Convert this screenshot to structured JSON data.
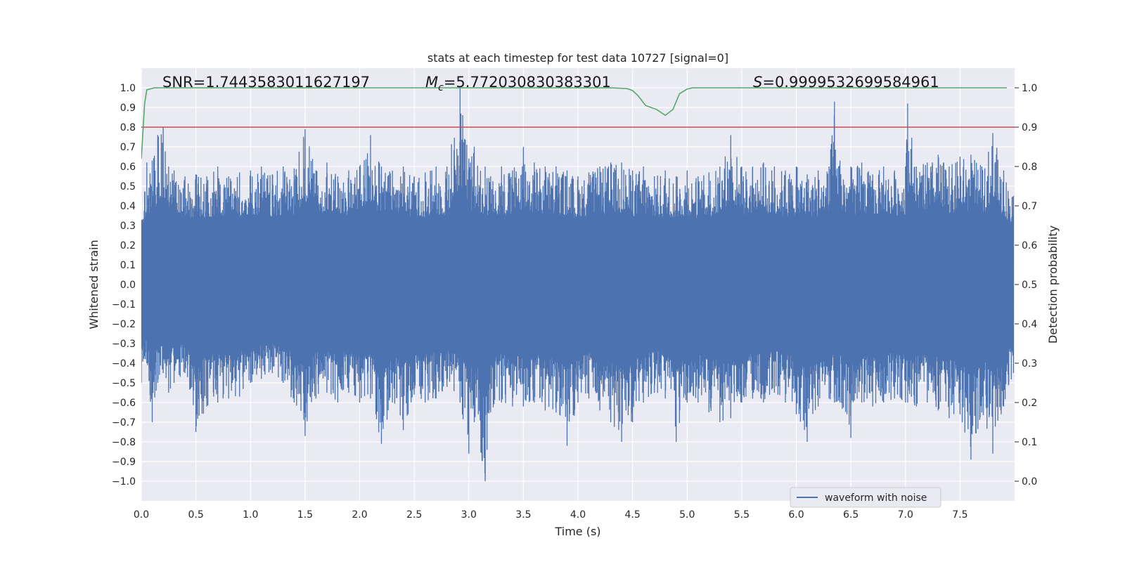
{
  "chart_data": {
    "type": "line",
    "title": "stats at each timestep for test data 10727 [signal=0]",
    "xlabel": "Time (s)",
    "ylabel_left": "Whitened strain",
    "ylabel_right": "Detection probability",
    "xlim": [
      0,
      8.0
    ],
    "ylim_left": [
      -1.1,
      1.1
    ],
    "ylim_right": [
      -0.05,
      1.05
    ],
    "x_ticks": [
      "0.0",
      "0.5",
      "1.0",
      "1.5",
      "2.0",
      "2.5",
      "3.0",
      "3.5",
      "4.0",
      "4.5",
      "5.0",
      "5.5",
      "6.0",
      "6.5",
      "7.0",
      "7.5"
    ],
    "y_left_ticks": [
      "1.0",
      "0.9",
      "0.8",
      "0.7",
      "0.6",
      "0.5",
      "0.4",
      "0.3",
      "0.2",
      "0.1",
      "0.0",
      "−0.1",
      "−0.2",
      "−0.3",
      "−0.4",
      "−0.5",
      "−0.6",
      "−0.7",
      "−0.8",
      "−0.9",
      "−1.0"
    ],
    "y_right_ticks": [
      "1.0",
      "0.9",
      "0.8",
      "0.7",
      "0.6",
      "0.5",
      "0.4",
      "0.3",
      "0.2",
      "0.1",
      "0.0"
    ],
    "grid": true,
    "legend": {
      "position": "lower-right",
      "entries": [
        "waveform with noise"
      ]
    },
    "annotations": {
      "snr": "SNR=1.7443583011627197",
      "mc_symbol": "M",
      "mc_sub": "c",
      "mc_value": "=5.772030830383301",
      "s_symbol": "S",
      "s_value": "=0.9999532699584961"
    },
    "threshold": {
      "axis": "right",
      "value": 0.9,
      "color": "#c44e52"
    },
    "series": [
      {
        "name": "waveform with noise",
        "axis": "left",
        "color": "#4c72b0",
        "envelope": {
          "x": [
            0.0,
            0.05,
            0.1,
            0.15,
            0.2,
            0.25,
            0.3,
            0.4,
            0.5,
            0.6,
            0.7,
            0.8,
            0.9,
            1.0,
            1.1,
            1.2,
            1.3,
            1.4,
            1.5,
            1.6,
            1.7,
            1.8,
            1.9,
            2.0,
            2.1,
            2.2,
            2.3,
            2.4,
            2.5,
            2.6,
            2.7,
            2.8,
            2.92,
            3.0,
            3.05,
            3.15,
            3.2,
            3.3,
            3.4,
            3.5,
            3.6,
            3.7,
            3.8,
            3.9,
            4.0,
            4.1,
            4.2,
            4.3,
            4.4,
            4.5,
            4.6,
            4.7,
            4.8,
            4.9,
            5.0,
            5.1,
            5.2,
            5.3,
            5.4,
            5.5,
            5.6,
            5.7,
            5.8,
            5.9,
            6.0,
            6.1,
            6.2,
            6.3,
            6.35,
            6.4,
            6.5,
            6.6,
            6.7,
            6.8,
            6.9,
            7.0,
            7.02,
            7.1,
            7.2,
            7.3,
            7.4,
            7.5,
            7.6,
            7.7,
            7.8,
            7.9,
            7.99
          ],
          "max": [
            0.33,
            0.62,
            0.63,
            0.76,
            0.8,
            0.6,
            0.58,
            0.55,
            0.56,
            0.55,
            0.6,
            0.55,
            0.57,
            0.58,
            0.6,
            0.56,
            0.6,
            0.59,
            0.79,
            0.58,
            0.62,
            0.55,
            0.58,
            0.6,
            0.76,
            0.6,
            0.58,
            0.6,
            0.55,
            0.57,
            0.6,
            0.6,
            1.0,
            0.64,
            0.7,
            0.6,
            0.55,
            0.6,
            0.58,
            0.7,
            0.62,
            0.6,
            0.6,
            0.58,
            0.55,
            0.57,
            0.6,
            0.62,
            0.62,
            0.58,
            0.6,
            0.55,
            0.58,
            0.55,
            0.58,
            0.55,
            0.57,
            0.6,
            0.76,
            0.6,
            0.6,
            0.62,
            0.6,
            0.58,
            0.6,
            0.56,
            0.58,
            0.6,
            0.93,
            0.63,
            0.6,
            0.62,
            0.56,
            0.6,
            0.58,
            0.6,
            0.92,
            0.6,
            0.62,
            0.66,
            0.6,
            0.65,
            0.66,
            0.6,
            0.77,
            0.58,
            0.45
          ],
          "min": [
            -0.5,
            -0.4,
            -0.7,
            -0.5,
            -0.45,
            -0.55,
            -0.5,
            -0.45,
            -0.75,
            -0.62,
            -0.6,
            -0.58,
            -0.57,
            -0.5,
            -0.48,
            -0.45,
            -0.5,
            -0.6,
            -0.77,
            -0.58,
            -0.55,
            -0.6,
            -0.55,
            -0.6,
            -0.58,
            -0.81,
            -0.6,
            -0.74,
            -0.56,
            -0.6,
            -0.58,
            -0.52,
            -0.6,
            -0.86,
            -0.7,
            -1.0,
            -0.65,
            -0.6,
            -0.62,
            -0.62,
            -0.6,
            -0.64,
            -0.65,
            -0.82,
            -0.6,
            -0.58,
            -0.64,
            -0.7,
            -0.8,
            -0.7,
            -0.6,
            -0.55,
            -0.58,
            -0.8,
            -0.6,
            -0.6,
            -0.65,
            -0.7,
            -0.68,
            -0.6,
            -0.58,
            -0.6,
            -0.55,
            -0.6,
            -0.66,
            -0.8,
            -0.62,
            -0.58,
            -0.6,
            -0.6,
            -0.78,
            -0.6,
            -0.62,
            -0.6,
            -0.58,
            -0.6,
            -0.6,
            -0.62,
            -0.6,
            -0.64,
            -0.68,
            -0.66,
            -0.89,
            -0.65,
            -0.86,
            -0.62,
            -0.45
          ]
        }
      },
      {
        "name": "detection probability",
        "axis": "right",
        "color": "#55a868",
        "x": [
          0.0,
          0.03,
          0.05,
          0.12,
          0.5,
          1.0,
          2.0,
          3.0,
          3.5,
          4.0,
          4.3,
          4.45,
          4.5,
          4.55,
          4.62,
          4.72,
          4.8,
          4.87,
          4.93,
          5.0,
          5.05,
          5.2,
          5.5,
          6.0,
          6.5,
          7.0,
          7.5,
          7.93
        ],
        "y": [
          0.82,
          0.96,
          0.995,
          1.0,
          1.0,
          1.0,
          1.0,
          1.0,
          1.0,
          1.0,
          1.0,
          0.998,
          0.993,
          0.98,
          0.955,
          0.945,
          0.93,
          0.945,
          0.985,
          0.997,
          1.0,
          1.0,
          1.0,
          1.0,
          1.0,
          1.0,
          1.0,
          1.0
        ]
      }
    ]
  }
}
